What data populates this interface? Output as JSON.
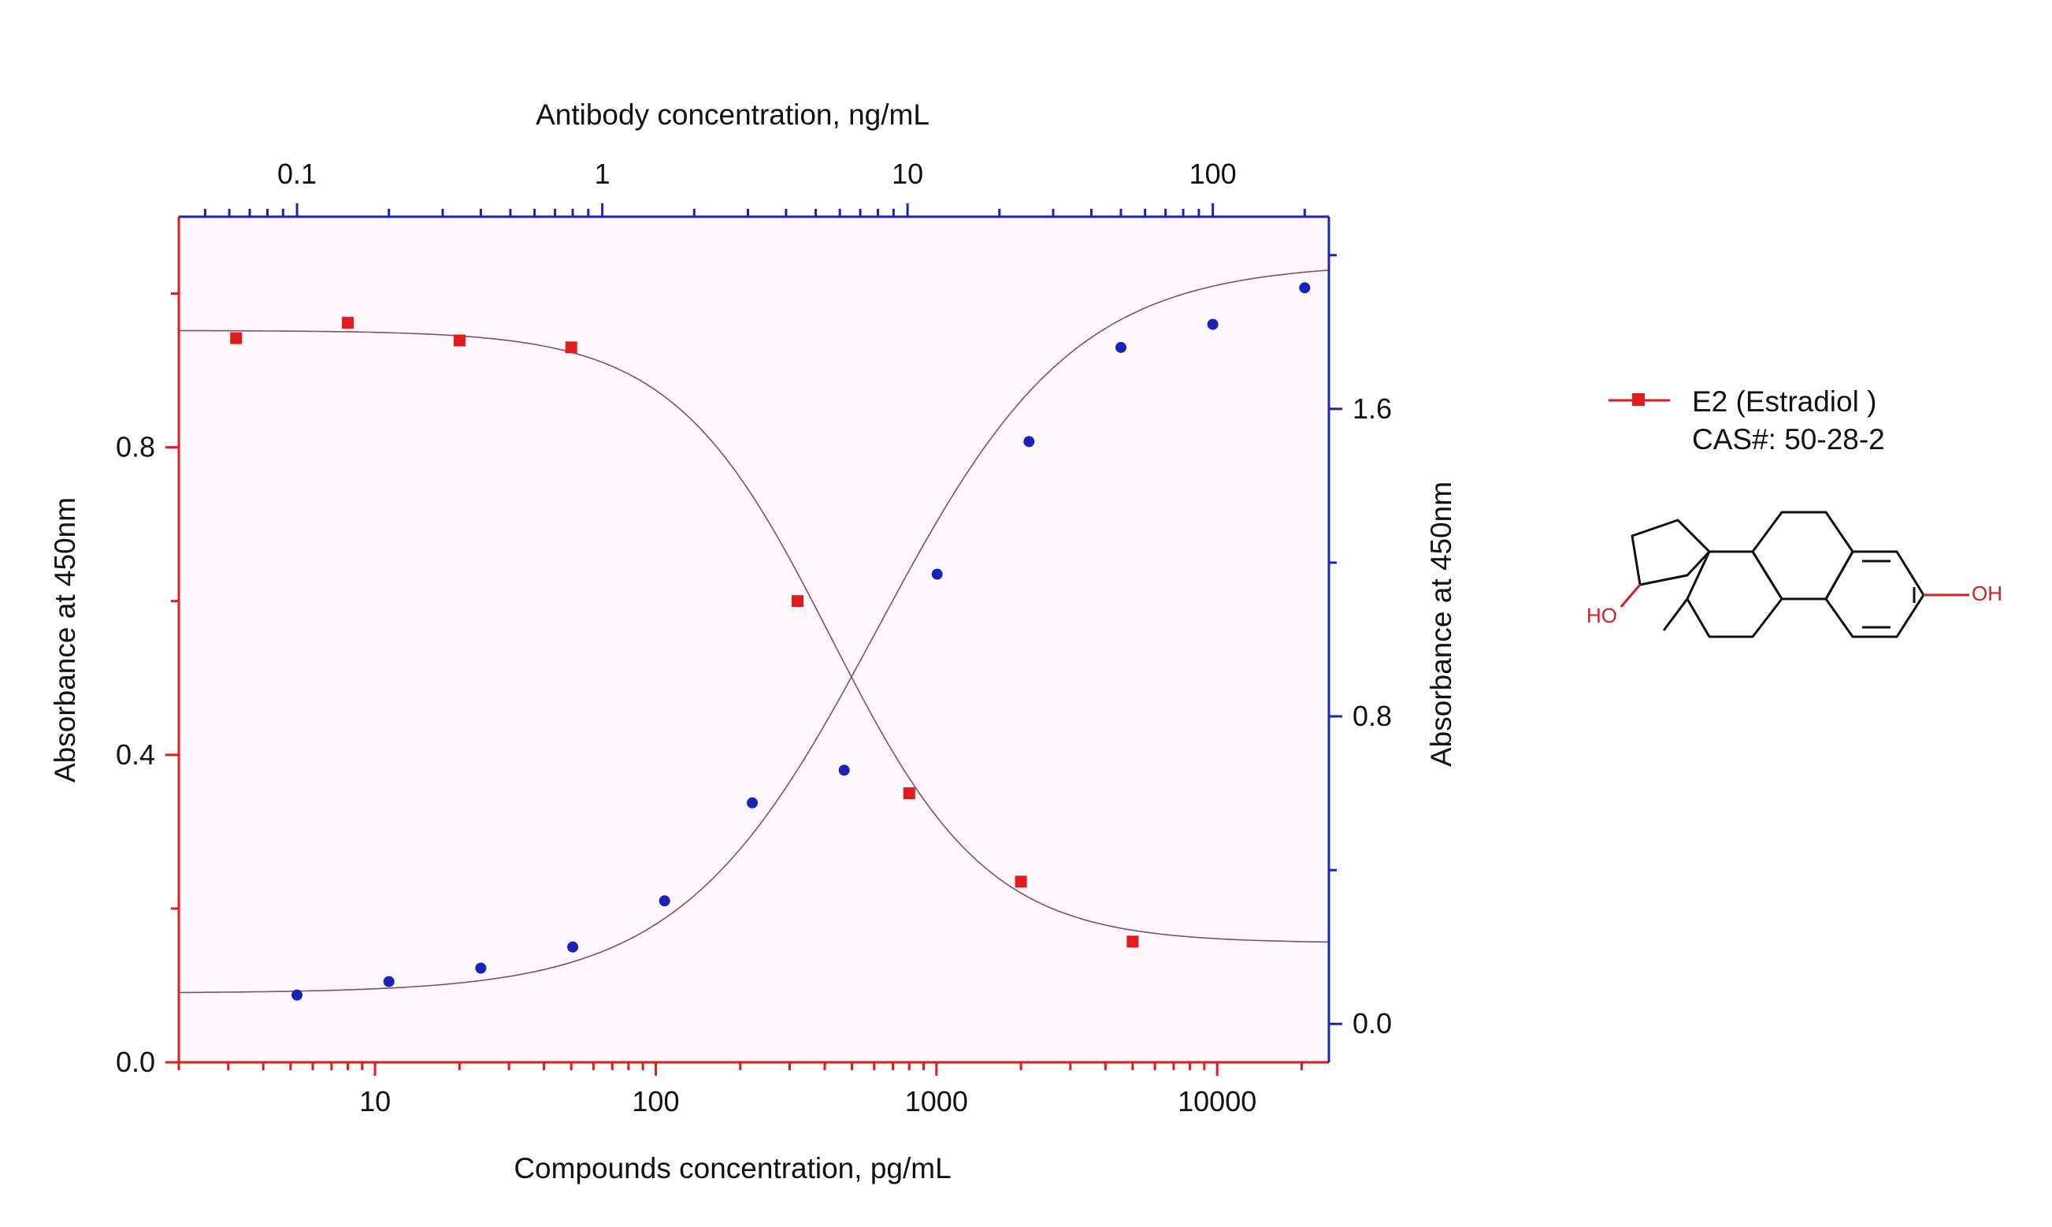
{
  "chart_data": {
    "type": "scatter",
    "plot_background": "#fdf7fb",
    "top_axis": {
      "label": "Antibody concentration, ng/mL",
      "scale": "log",
      "range": [
        0.041,
        240
      ],
      "ticks": [
        0.1,
        1,
        10,
        100
      ],
      "tick_labels": [
        "0.1",
        "1",
        "10",
        "100"
      ],
      "color": "#1a23b8"
    },
    "bottom_axis": {
      "label": "Compounds concentration, pg/mL",
      "scale": "log",
      "range": [
        2,
        25000
      ],
      "ticks": [
        10,
        100,
        1000,
        10000
      ],
      "tick_labels": [
        "10",
        "100",
        "1000",
        "10000"
      ],
      "color": "#e01b1b"
    },
    "left_axis": {
      "label": "Absorbance at 450nm",
      "range": [
        0.0,
        1.1
      ],
      "ticks": [
        0.0,
        0.4,
        0.8
      ],
      "tick_labels": [
        "0.0",
        "0.4",
        "0.8"
      ],
      "color": "#e01b1b"
    },
    "right_axis": {
      "label": "Absorbance at 450nm",
      "range": [
        -0.1,
        2.1
      ],
      "ticks": [
        0.0,
        0.8,
        1.6
      ],
      "tick_labels": [
        "0.0",
        "0.8",
        "1.6"
      ],
      "color": "#1a23b8"
    },
    "series": [
      {
        "name": "E2 (Estradiol )",
        "color": "#e01b1b",
        "marker": "square",
        "x_axis": "bottom",
        "y_axis": "left",
        "x": [
          3.2,
          8,
          20,
          50,
          320,
          800,
          2000,
          5000
        ],
        "y": [
          0.942,
          0.962,
          0.939,
          0.93,
          0.6,
          0.35,
          0.235,
          0.157
        ],
        "fit": {
          "bottom": 0.155,
          "top": 0.952,
          "ec50": 420,
          "hill": 1.55
        }
      },
      {
        "name": "",
        "color": "#1a23b8",
        "marker": "circle",
        "x_axis": "top",
        "y_axis": "right",
        "x": [
          0.1,
          0.2,
          0.4,
          0.8,
          1.6,
          3.1,
          6.2,
          12.5,
          25,
          50,
          100,
          200
        ],
        "y": [
          0.075,
          0.11,
          0.145,
          0.2,
          0.32,
          0.575,
          0.66,
          1.17,
          1.515,
          1.76,
          1.82,
          1.915
        ],
        "fit": {
          "bottom": 0.08,
          "top": 1.98,
          "ec50": 8,
          "hill": 1.35
        }
      }
    ]
  },
  "legend": {
    "entry_label": "E2 (Estradiol )",
    "cas_text": "CAS#:  50-28-2"
  },
  "structure": {
    "label_left": "HO",
    "label_right": "OH"
  }
}
